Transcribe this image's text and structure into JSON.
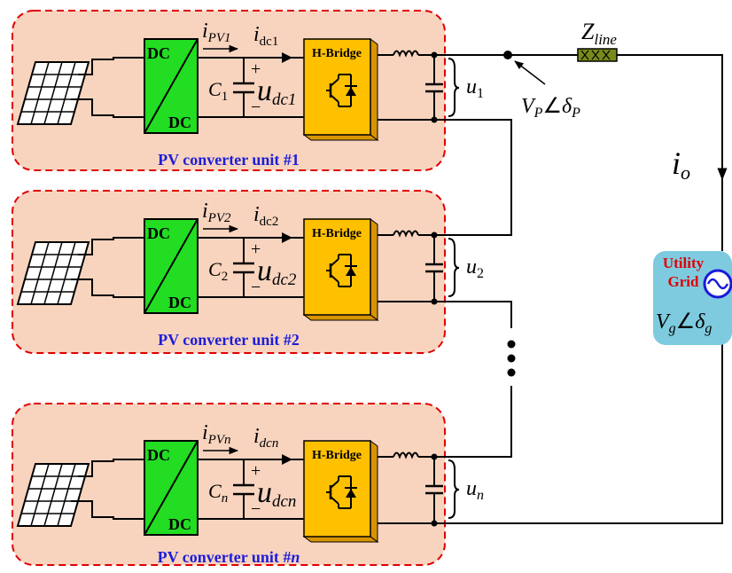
{
  "units": [
    {
      "caption": "PV converter unit #1",
      "i_pv": "i",
      "i_pv_sub": "PV1",
      "i_dc": "i",
      "i_dc_sub": "dc1",
      "cap": "C",
      "cap_sub": "1",
      "u_dc": "u",
      "u_dc_sub": "dc1",
      "u_out": "u",
      "u_out_sub": "1"
    },
    {
      "caption": "PV converter unit #2",
      "i_pv": "i",
      "i_pv_sub": "PV2",
      "i_dc": "i",
      "i_dc_sub": "dc2",
      "cap": "C",
      "cap_sub": "2",
      "u_dc": "u",
      "u_dc_sub": "dc2",
      "u_out": "u",
      "u_out_sub": "2"
    },
    {
      "caption_main": "PV converter unit #",
      "caption_n": "n",
      "i_pv": "i",
      "i_pv_sub": "PVn",
      "i_dc": "i",
      "i_dc_sub": "dcn",
      "cap": "C",
      "cap_sub": "n",
      "u_dc": "u",
      "u_dc_sub": "dcn",
      "u_out": "u",
      "u_out_sub": "n"
    }
  ],
  "dcdc": {
    "top": "DC",
    "bottom": "DC"
  },
  "hbridge": "H-Bridge",
  "plus": "+",
  "minus": "−",
  "line": {
    "z": "Z",
    "z_sub": "line"
  },
  "pcc": {
    "v": "V",
    "v_sub": "P",
    "angle": "∠",
    "delta": "δ",
    "delta_sub": "P"
  },
  "output_current": {
    "i": "i",
    "sub": "o"
  },
  "grid": {
    "label_1": "Utility",
    "label_2": "Grid",
    "v": "V",
    "v_sub": "g",
    "angle": "∠",
    "delta": "δ",
    "delta_sub": "g"
  },
  "colors": {
    "unit_fill": "#f8d4bf",
    "unit_border": "#e00000",
    "dcdc": "#22dd22",
    "hbridge": "#ffc000",
    "hbridge_side": "#d89400",
    "caption": "#1d1dd8",
    "grid_box": "#7ecbe0",
    "grid_label": "#e00000",
    "grid_symbol": "#1a1ad8",
    "line_z": "#7a8a1a"
  }
}
